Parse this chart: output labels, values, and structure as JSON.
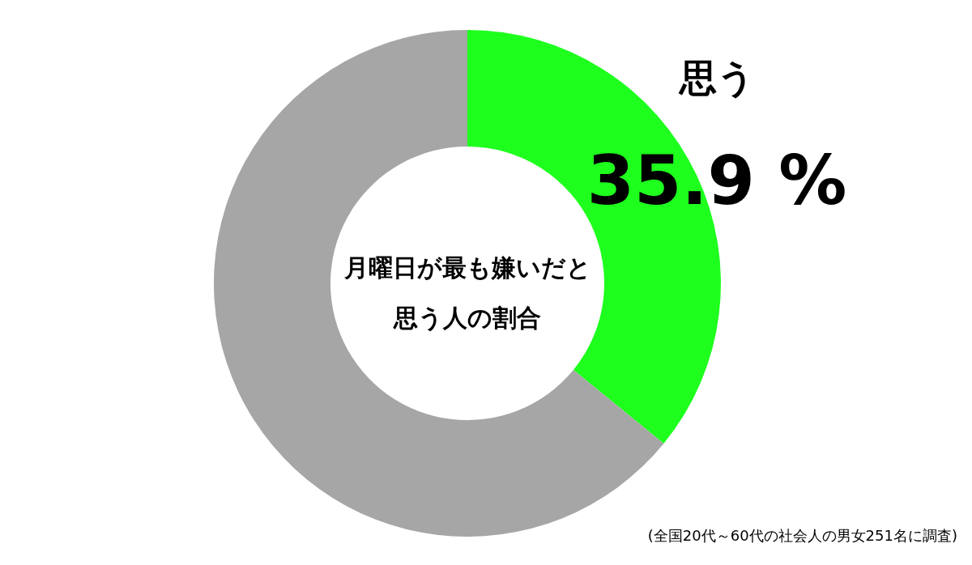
{
  "chart_data": {
    "type": "donut",
    "title": "月曜日が最も嫌いだと思う人の割合",
    "categories": [
      "思う",
      null
    ],
    "values": [
      35.9,
      64.1
    ],
    "colors": [
      "#1eff1e",
      "#a6a6a6"
    ],
    "value_labels": [
      "35.9 %",
      null
    ],
    "legend": false,
    "annotations": [
      "(全国20代～60代の社会人の男女251名に調査)"
    ]
  }
}
